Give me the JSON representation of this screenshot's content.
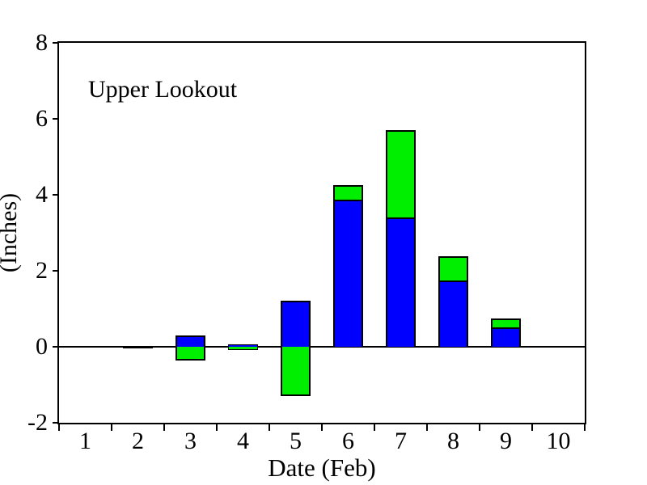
{
  "chart_data": {
    "type": "bar",
    "stacked": true,
    "annotation": "Upper Lookout",
    "xlabel": "Date (Feb)",
    "ylabel": "(Inches)",
    "categories": [
      1,
      2,
      3,
      4,
      5,
      6,
      7,
      8,
      9,
      10
    ],
    "xtick_labels": [
      "1",
      "2",
      "3",
      "4",
      "5",
      "6",
      "7",
      "8",
      "9",
      "10"
    ],
    "yticks": [
      -2,
      0,
      2,
      4,
      6,
      8
    ],
    "ylim": [
      -2,
      8
    ],
    "grid": false,
    "legend": null,
    "series": [
      {
        "name": "blue-series",
        "color": "#0000ff",
        "values": [
          0,
          0.01,
          0.3,
          0.07,
          1.22,
          3.88,
          3.4,
          1.75,
          0.52,
          0
        ]
      },
      {
        "name": "green-series",
        "color": "#00ee00",
        "values": [
          0,
          -0.01,
          -0.37,
          -0.08,
          -1.3,
          0.37,
          2.3,
          0.64,
          0.23,
          0
        ]
      }
    ],
    "colors": {
      "axis": "#000000",
      "background": "#ffffff"
    }
  }
}
